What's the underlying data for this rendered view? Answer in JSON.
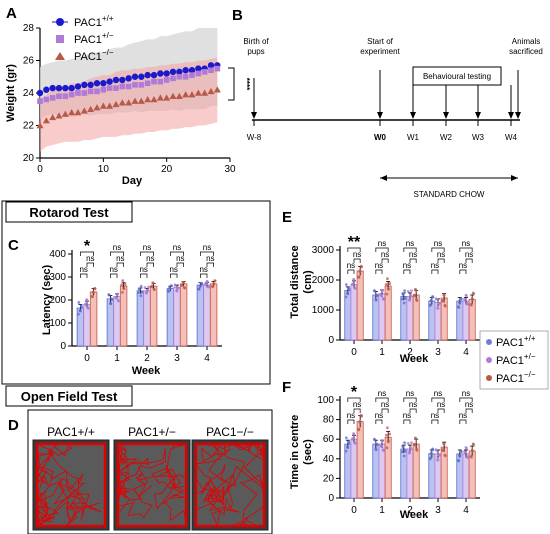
{
  "panels": {
    "A": "A",
    "B": "B",
    "C": "C",
    "D": "D",
    "E": "E",
    "F": "F"
  },
  "colors": {
    "wt": "#1a1acc",
    "het": "#b07ad8",
    "ko": "#b85a4a",
    "ko_band": "#f4a3a3",
    "wt_band": "#d8d8d8",
    "open_field": "#e00000"
  },
  "panelA": {
    "xlabel": "Day",
    "ylabel": "Weight (gr)",
    "xticks": [
      "0",
      "10",
      "20",
      "30"
    ],
    "yticks": [
      "20",
      "22",
      "24",
      "26",
      "28"
    ],
    "legend": [
      {
        "base": "PAC1",
        "sup": "+/+"
      },
      {
        "base": "PAC1",
        "sup": "+/−"
      },
      {
        "base": "PAC1",
        "sup": "−/−"
      }
    ],
    "sig": "****"
  },
  "panelB": {
    "events": {
      "birth": [
        "Birth of",
        "pups"
      ],
      "start": [
        "Start of",
        "experiment"
      ],
      "behav": "Behavioural testing",
      "sacrifice": [
        "Animals",
        "sacrificed"
      ]
    },
    "week_labels": [
      "W-8",
      "W0",
      "W1",
      "W2",
      "W3",
      "W4"
    ],
    "chow": "STANDARD CHOW"
  },
  "boxes": {
    "rotarod": "Rotarod Test",
    "openfield": "Open Field Test"
  },
  "panelC": {
    "ylabel": "Latency (sec)",
    "xlabel": "Week",
    "yticks": [
      "0",
      "100",
      "200",
      "300",
      "400"
    ],
    "weeks": [
      "0",
      "1",
      "2",
      "3",
      "4"
    ]
  },
  "panelD": {
    "genotypes": [
      "PAC1+/+",
      "PAC1+/−",
      "PAC1−/−"
    ]
  },
  "panelE": {
    "ylabel": "Total distance",
    "ylabel2": "(cm)",
    "xlabel": "Week",
    "yticks": [
      "0",
      "1000",
      "2000",
      "3000"
    ],
    "weeks": [
      "0",
      "1",
      "2",
      "3",
      "4"
    ]
  },
  "panelF": {
    "ylabel": "Time in centre",
    "ylabel2": "(sec)",
    "xlabel": "Week",
    "yticks": [
      "0",
      "20",
      "40",
      "60",
      "80",
      "100"
    ],
    "weeks": [
      "0",
      "1",
      "2",
      "3",
      "4"
    ]
  },
  "legend_EF": [
    {
      "base": "PAC1",
      "sup": "+/+"
    },
    {
      "base": "PAC1",
      "sup": "+/−"
    },
    {
      "base": "PAC1",
      "sup": "−/−"
    }
  ],
  "chart_data": [
    {
      "id": "A",
      "type": "line",
      "xlabel": "Day",
      "ylabel": "Weight (gr)",
      "xlim": [
        0,
        30
      ],
      "ylim": [
        20,
        28
      ],
      "series": [
        {
          "name": "PAC1+/+",
          "x": [
            0,
            1,
            2,
            3,
            4,
            5,
            6,
            7,
            8,
            9,
            10,
            11,
            12,
            13,
            14,
            15,
            16,
            17,
            18,
            19,
            20,
            21,
            22,
            23,
            24,
            25,
            26,
            27,
            28
          ],
          "y": [
            24.0,
            24.2,
            24.3,
            24.3,
            24.3,
            24.3,
            24.4,
            24.5,
            24.5,
            24.6,
            24.6,
            24.7,
            24.8,
            24.8,
            24.9,
            25.0,
            25.0,
            25.1,
            25.1,
            25.2,
            25.2,
            25.3,
            25.3,
            25.4,
            25.4,
            25.5,
            25.5,
            25.7,
            25.7
          ],
          "band": [
            1.6,
            1.6,
            1.6,
            1.7,
            1.7,
            1.8,
            1.8,
            1.8,
            1.9,
            1.9,
            1.9,
            2.0,
            2.0,
            2.0,
            2.1,
            2.1,
            2.2,
            2.2,
            2.2,
            2.3,
            2.3,
            2.3,
            2.4,
            2.4,
            2.4,
            2.5,
            2.5,
            2.5,
            2.5
          ]
        },
        {
          "name": "PAC1+/−",
          "x": [
            0,
            1,
            2,
            3,
            4,
            5,
            6,
            7,
            8,
            9,
            10,
            11,
            12,
            13,
            14,
            15,
            16,
            17,
            18,
            19,
            20,
            21,
            22,
            23,
            24,
            25,
            26,
            27,
            28
          ],
          "y": [
            23.5,
            23.6,
            23.7,
            23.8,
            23.8,
            23.9,
            24.0,
            24.0,
            24.1,
            24.1,
            24.2,
            24.3,
            24.3,
            24.4,
            24.4,
            24.5,
            24.5,
            24.6,
            24.7,
            24.7,
            24.8,
            24.9,
            25.0,
            25.0,
            25.1,
            25.2,
            25.3,
            25.4,
            25.5
          ]
        },
        {
          "name": "PAC1−/−",
          "x": [
            0,
            1,
            2,
            3,
            4,
            5,
            6,
            7,
            8,
            9,
            10,
            11,
            12,
            13,
            14,
            15,
            16,
            17,
            18,
            19,
            20,
            21,
            22,
            23,
            24,
            25,
            26,
            27,
            28
          ],
          "y": [
            22.0,
            22.3,
            22.5,
            22.6,
            22.7,
            22.8,
            22.8,
            22.9,
            23.0,
            23.1,
            23.2,
            23.2,
            23.3,
            23.4,
            23.4,
            23.5,
            23.5,
            23.6,
            23.6,
            23.7,
            23.7,
            23.8,
            23.8,
            23.9,
            23.9,
            24.0,
            24.0,
            24.1,
            24.2
          ],
          "band": [
            1.6,
            1.6,
            1.7,
            1.7,
            1.7,
            1.8,
            1.8,
            1.8,
            1.9,
            1.9,
            1.9,
            1.9,
            2.0,
            2.0,
            2.0,
            2.0,
            2.0,
            2.0,
            2.0,
            2.0,
            2.0,
            2.0,
            2.0,
            2.0,
            2.0,
            2.0,
            2.0,
            2.0,
            2.0
          ]
        }
      ]
    },
    {
      "id": "C",
      "type": "bar",
      "ylabel": "Latency (sec)",
      "xlabel": "Week",
      "ylim": [
        0,
        400
      ],
      "categories": [
        "0",
        "1",
        "2",
        "3",
        "4"
      ],
      "series": [
        {
          "name": "PAC1+/+",
          "values": [
            165,
            205,
            240,
            250,
            265
          ],
          "err": [
            15,
            15,
            12,
            10,
            10
          ]
        },
        {
          "name": "PAC1+/−",
          "values": [
            180,
            215,
            240,
            255,
            265
          ],
          "err": [
            15,
            12,
            10,
            10,
            10
          ]
        },
        {
          "name": "PAC1−/−",
          "values": [
            235,
            260,
            260,
            270,
            270
          ],
          "err": [
            15,
            15,
            12,
            10,
            10
          ]
        }
      ],
      "significance": [
        [
          "*",
          "ns",
          "ns"
        ],
        [
          "ns",
          "ns",
          "ns"
        ],
        [
          "ns",
          "ns",
          "ns"
        ],
        [
          "ns",
          "ns",
          "ns"
        ],
        [
          "ns",
          "ns",
          "ns"
        ]
      ]
    },
    {
      "id": "E",
      "type": "bar",
      "ylabel": "Total distance (cm)",
      "xlabel": "Week",
      "ylim": [
        0,
        3000
      ],
      "categories": [
        "0",
        "1",
        "2",
        "3",
        "4"
      ],
      "series": [
        {
          "name": "PAC1+/+",
          "values": [
            1650,
            1500,
            1450,
            1300,
            1300
          ],
          "err": [
            120,
            120,
            120,
            120,
            120
          ]
        },
        {
          "name": "PAC1+/−",
          "values": [
            1850,
            1550,
            1450,
            1250,
            1300
          ],
          "err": [
            120,
            120,
            120,
            120,
            120
          ]
        },
        {
          "name": "PAC1−/−",
          "values": [
            2300,
            1800,
            1500,
            1400,
            1350
          ],
          "err": [
            150,
            150,
            150,
            150,
            150
          ]
        }
      ],
      "significance": [
        [
          "**",
          "ns",
          "ns"
        ],
        [
          "ns",
          "ns",
          "ns"
        ],
        [
          "ns",
          "ns",
          "ns"
        ],
        [
          "ns",
          "ns",
          "ns"
        ],
        [
          "ns",
          "ns",
          "ns"
        ]
      ]
    },
    {
      "id": "F",
      "type": "bar",
      "ylabel": "Time in centre (sec)",
      "xlabel": "Week",
      "ylim": [
        0,
        100
      ],
      "categories": [
        "0",
        "1",
        "2",
        "3",
        "4"
      ],
      "series": [
        {
          "name": "PAC1+/+",
          "values": [
            55,
            55,
            50,
            45,
            45
          ],
          "err": [
            4,
            4,
            4,
            4,
            4
          ]
        },
        {
          "name": "PAC1+/−",
          "values": [
            60,
            55,
            50,
            45,
            45
          ],
          "err": [
            4,
            4,
            4,
            4,
            4
          ]
        },
        {
          "name": "PAC1−/−",
          "values": [
            78,
            62,
            55,
            52,
            48
          ],
          "err": [
            6,
            6,
            5,
            5,
            5
          ]
        }
      ],
      "significance": [
        [
          "*",
          "ns",
          "ns"
        ],
        [
          "ns",
          "ns",
          "ns"
        ],
        [
          "ns",
          "ns",
          "ns"
        ],
        [
          "ns",
          "ns",
          "ns"
        ],
        [
          "ns",
          "ns",
          "ns"
        ]
      ]
    }
  ]
}
